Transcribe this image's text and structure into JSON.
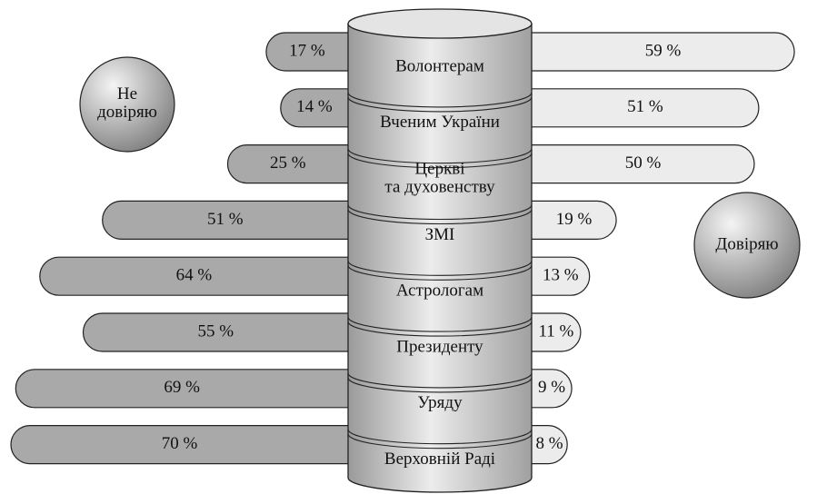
{
  "chart_data": {
    "type": "bar",
    "categories": [
      "Волонтерам",
      "Вченим України",
      "Церкві\nта духовенству",
      "ЗМІ",
      "Астрологам",
      "Президенту",
      "Уряду",
      "Верховній Раді"
    ],
    "series": [
      {
        "name": "Не\nдовіряю",
        "color": "#a9a9a9",
        "values": [
          17,
          14,
          25,
          51,
          64,
          55,
          69,
          70
        ],
        "value_labels": [
          "17 %",
          "14 %",
          "25 %",
          "51 %",
          "64 %",
          "55 %",
          "69 %",
          "70 %"
        ]
      },
      {
        "name": "Довіряю",
        "color": "#ececec",
        "values": [
          59,
          51,
          50,
          19,
          13,
          11,
          9,
          8
        ],
        "value_labels": [
          "59 %",
          "51 %",
          "50 %",
          "19 %",
          "13 %",
          "11 %",
          "9 %",
          "8 %"
        ]
      }
    ]
  }
}
